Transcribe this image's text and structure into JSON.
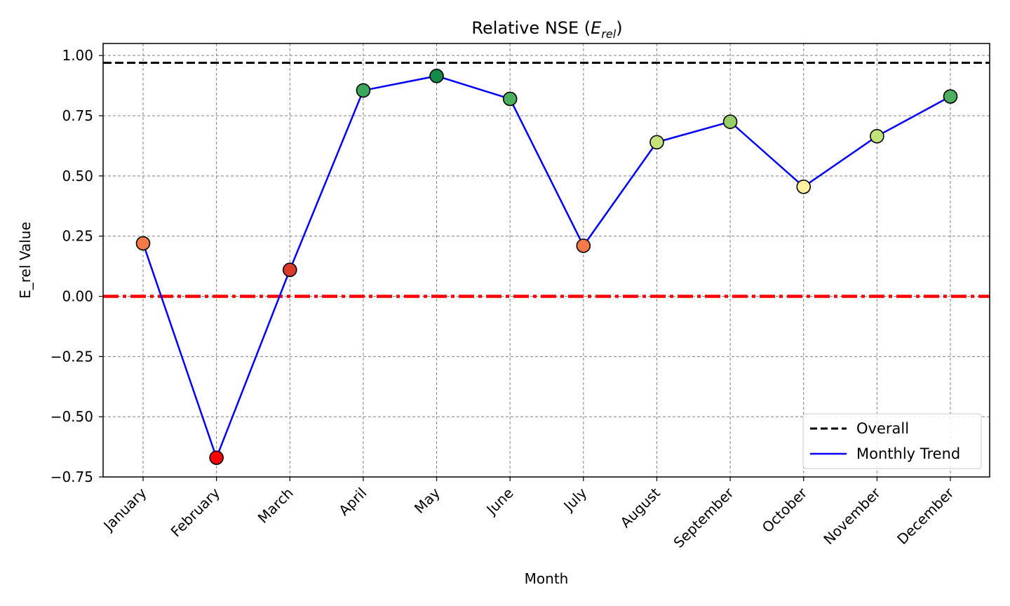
{
  "chart_data": {
    "type": "line",
    "title": {
      "main": "Relative NSE (",
      "symbol": "E",
      "subscript": "rel",
      "close": ")"
    },
    "xlabel": "Month",
    "ylabel": "E_rel Value",
    "ylim": [
      -0.75,
      1.05
    ],
    "yticks": [
      1.0,
      0.75,
      0.5,
      0.25,
      0.0,
      -0.25,
      -0.5,
      -0.75
    ],
    "ytick_labels": [
      "1.00",
      "0.75",
      "0.50",
      "0.25",
      "0.00",
      "−0.25",
      "−0.50",
      "−0.75"
    ],
    "categories": [
      "January",
      "February",
      "March",
      "April",
      "May",
      "June",
      "July",
      "August",
      "September",
      "October",
      "November",
      "December"
    ],
    "series": [
      {
        "name": "Monthly Trend",
        "color": "#0000ff",
        "values": [
          0.22,
          -0.67,
          0.11,
          0.855,
          0.915,
          0.82,
          0.21,
          0.64,
          0.725,
          0.455,
          0.665,
          0.83
        ],
        "marker_colors": [
          "#f57a4a",
          "#ff0000",
          "#d93a2a",
          "#3aa85a",
          "#138a4a",
          "#4caf60",
          "#f57a4a",
          "#c5e37a",
          "#95cf65",
          "#fff0a0",
          "#c0e37a",
          "#4caf60"
        ]
      }
    ],
    "reference_lines": [
      {
        "name": "Overall",
        "value": 0.97,
        "color": "#000000",
        "style": "dashed"
      },
      {
        "value": 0.0,
        "color": "#ff0000",
        "style": "dash-dot"
      }
    ],
    "grid": true,
    "legend": {
      "placement": "lower-right",
      "entries": [
        {
          "label": "Overall",
          "color": "#000000",
          "style": "dashed"
        },
        {
          "label": "Monthly Trend",
          "color": "#0000ff",
          "style": "solid"
        }
      ]
    }
  }
}
